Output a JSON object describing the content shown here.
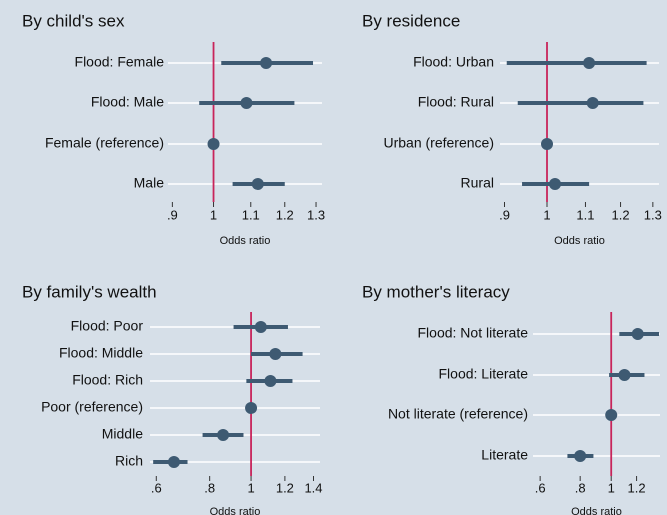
{
  "chart_data": [
    {
      "type": "forest",
      "title": "By child's sex",
      "xlabel": "Odds ratio",
      "xscale": "log",
      "categories": [
        "Flood: Female",
        "Flood: Male",
        "Female (reference)",
        "Male"
      ],
      "values": [
        1.144,
        1.088,
        1,
        1.12
      ],
      "ci_low": [
        1.02,
        0.964,
        null,
        1.05
      ],
      "ci_high": [
        1.29,
        1.23,
        null,
        1.2
      ],
      "xlim": [
        0.89,
        1.32
      ],
      "xticks": [
        {
          "value": 0.9,
          "label": ".9"
        },
        1,
        1.1,
        1.2,
        1.3
      ],
      "ref_line": 1,
      "ref_color": "#c8245a",
      "color": "#3e5a72",
      "grid": true
    },
    {
      "type": "forest",
      "title": "By residence",
      "xlabel": "Odds ratio",
      "xscale": "log",
      "categories": [
        "Flood: Urban",
        "Flood: Rural",
        "Urban (reference)",
        "Rural"
      ],
      "values": [
        1.11,
        1.12,
        1,
        1.02
      ],
      "ci_low": [
        0.905,
        0.93,
        null,
        0.94
      ],
      "ci_high": [
        1.28,
        1.27,
        null,
        1.11
      ],
      "xlim": [
        0.89,
        1.32
      ],
      "xticks": [
        {
          "value": 0.9,
          "label": ".9"
        },
        1,
        1.1,
        1.2,
        1.3
      ],
      "ref_line": 1,
      "ref_color": "#c8245a",
      "color": "#3e5a72",
      "grid": true
    },
    {
      "type": "forest",
      "title": "By family's wealth",
      "xlabel": "Odds ratio",
      "xscale": "log",
      "categories": [
        "Flood: Poor",
        "Flood: Middle",
        "Flood: Rich",
        "Poor (reference)",
        "Middle",
        "Rich"
      ],
      "values": [
        1.054,
        1.14,
        1.11,
        1,
        0.86,
        0.66
      ],
      "ci_low": [
        0.91,
        1.0,
        0.975,
        null,
        0.77,
        0.59
      ],
      "ci_high": [
        1.22,
        1.32,
        1.25,
        null,
        0.96,
        0.71
      ],
      "xlim": [
        0.58,
        1.45
      ],
      "xticks": [
        {
          "value": 0.6,
          "label": ".6"
        },
        {
          "value": 0.8,
          "label": ".8"
        },
        1,
        1.2,
        1.4
      ],
      "ref_line": 1,
      "ref_color": "#c8245a",
      "color": "#3e5a72",
      "grid": true
    },
    {
      "type": "forest",
      "title": "By mother's literacy",
      "xlabel": "Odds ratio",
      "xscale": "log",
      "categories": [
        "Flood: Not literate",
        "Flood: Literate",
        "Not literate (reference)",
        "Literate"
      ],
      "values": [
        1.21,
        1.1,
        1,
        0.8
      ],
      "ci_low": [
        1.06,
        0.985,
        null,
        0.73
      ],
      "ci_high": [
        1.41,
        1.27,
        null,
        0.88
      ],
      "xlim": [
        0.57,
        1.42
      ],
      "xticks": [
        {
          "value": 0.6,
          "label": ".6"
        },
        {
          "value": 0.8,
          "label": ".8"
        },
        1,
        1.2
      ],
      "ref_line": 1,
      "ref_color": "#c8245a",
      "color": "#3e5a72",
      "grid": true
    }
  ]
}
